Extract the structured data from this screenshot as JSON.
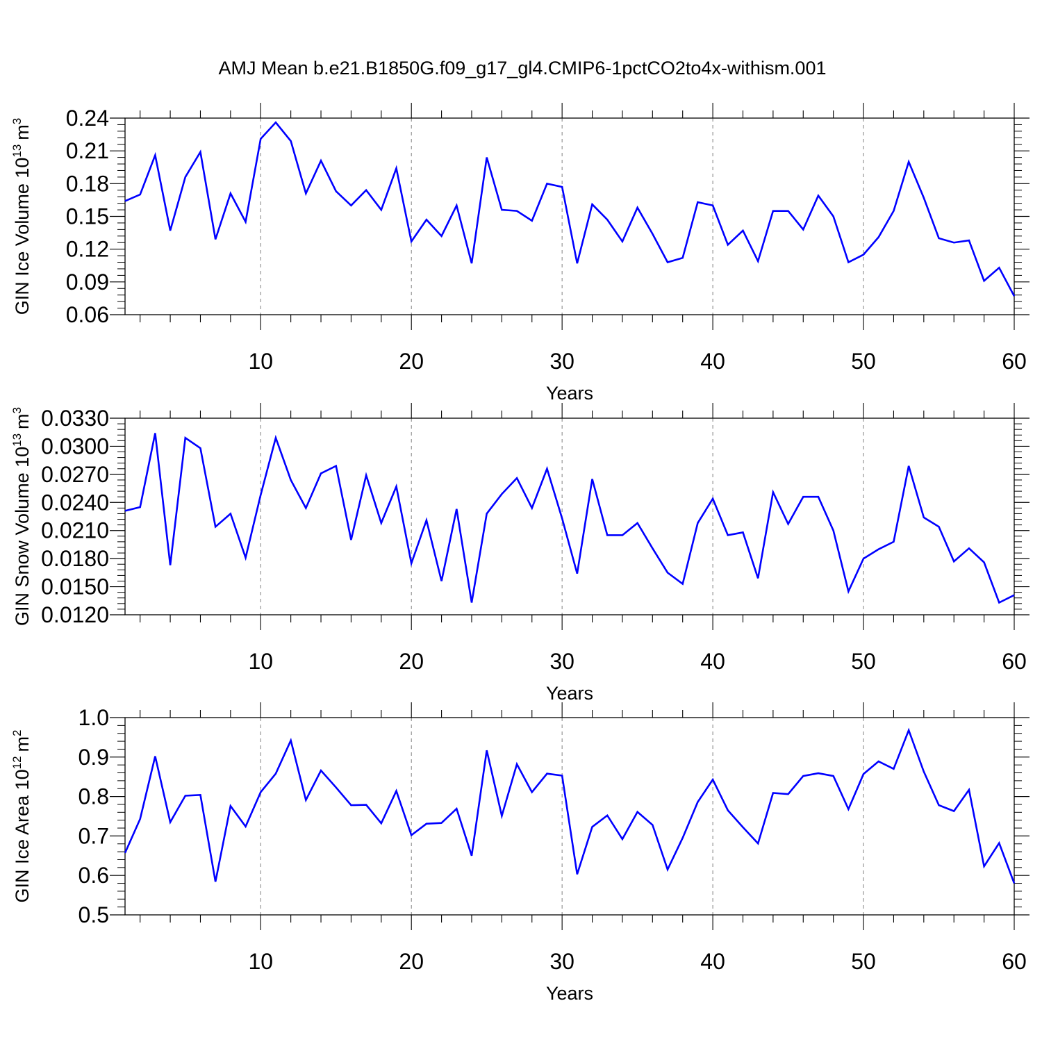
{
  "title": "AMJ Mean b.e21.B1850G.f09_g17_gl4.CMIP6-1pctCO2to4x-withism.001",
  "colors": {
    "line": "#0000ff",
    "axes": "#000000",
    "grid": "#808080"
  },
  "chart_data": [
    {
      "type": "line",
      "xlabel": "Years",
      "ylabel_text": "GIN Ice Volume 10",
      "ylabel_exponent": "13",
      "ylabel_unit": "m",
      "ylabel_unit_exponent": "3",
      "xlim": [
        1,
        60
      ],
      "ylim": [
        0.06,
        0.24
      ],
      "x_ticks": [
        "10",
        "20",
        "30",
        "40",
        "50",
        "60"
      ],
      "y_ticks": [
        "0.06",
        "0.09",
        "0.12",
        "0.15",
        "0.18",
        "0.21",
        "0.24"
      ],
      "x": [
        1,
        2,
        3,
        4,
        5,
        6,
        7,
        8,
        9,
        10,
        11,
        12,
        13,
        14,
        15,
        16,
        17,
        18,
        19,
        20,
        21,
        22,
        23,
        24,
        25,
        26,
        27,
        28,
        29,
        30,
        31,
        32,
        33,
        34,
        35,
        36,
        37,
        38,
        39,
        40,
        41,
        42,
        43,
        44,
        45,
        46,
        47,
        48,
        49,
        50,
        51,
        52,
        53,
        54,
        55,
        56,
        57,
        58,
        59,
        60
      ],
      "series": [
        {
          "values": [
            0.164,
            0.17,
            0.206,
            0.137,
            0.186,
            0.209,
            0.129,
            0.171,
            0.145,
            0.221,
            0.236,
            0.219,
            0.171,
            0.201,
            0.173,
            0.16,
            0.174,
            0.156,
            0.194,
            0.127,
            0.147,
            0.132,
            0.16,
            0.107,
            0.204,
            0.156,
            0.155,
            0.146,
            0.18,
            0.177,
            0.107,
            0.161,
            0.147,
            0.127,
            0.158,
            0.134,
            0.108,
            0.112,
            0.163,
            0.16,
            0.124,
            0.137,
            0.109,
            0.155,
            0.155,
            0.138,
            0.169,
            0.15,
            0.108,
            0.115,
            0.131,
            0.155,
            0.2,
            0.167,
            0.13,
            0.126,
            0.128,
            0.091,
            0.103,
            0.077
          ]
        }
      ],
      "grid": "dashed vertical at major x ticks"
    },
    {
      "type": "line",
      "xlabel": "Years",
      "ylabel_text": "GIN Snow Volume 10",
      "ylabel_exponent": "13",
      "ylabel_unit": "m",
      "ylabel_unit_exponent": "3",
      "xlim": [
        1,
        60
      ],
      "ylim": [
        0.012,
        0.033
      ],
      "x_ticks": [
        "10",
        "20",
        "30",
        "40",
        "50",
        "60"
      ],
      "y_ticks": [
        "0.0120",
        "0.0150",
        "0.0180",
        "0.0210",
        "0.0240",
        "0.0270",
        "0.0300",
        "0.0330"
      ],
      "x": [
        1,
        2,
        3,
        4,
        5,
        6,
        7,
        8,
        9,
        10,
        11,
        12,
        13,
        14,
        15,
        16,
        17,
        18,
        19,
        20,
        21,
        22,
        23,
        24,
        25,
        26,
        27,
        28,
        29,
        30,
        31,
        32,
        33,
        34,
        35,
        36,
        37,
        38,
        39,
        40,
        41,
        42,
        43,
        44,
        45,
        46,
        47,
        48,
        49,
        50,
        51,
        52,
        53,
        54,
        55,
        56,
        57,
        58,
        59,
        60
      ],
      "series": [
        {
          "values": [
            0.0231,
            0.0235,
            0.0314,
            0.0173,
            0.0309,
            0.0298,
            0.0214,
            0.0228,
            0.0181,
            0.0248,
            0.0309,
            0.0264,
            0.0234,
            0.0271,
            0.0279,
            0.02,
            0.0269,
            0.0218,
            0.0257,
            0.0175,
            0.0221,
            0.0156,
            0.0233,
            0.0133,
            0.0228,
            0.0249,
            0.0266,
            0.0234,
            0.0276,
            0.0223,
            0.0164,
            0.0265,
            0.0205,
            0.0205,
            0.0218,
            0.0191,
            0.0165,
            0.0153,
            0.0218,
            0.0244,
            0.0205,
            0.0208,
            0.0159,
            0.0251,
            0.0217,
            0.0246,
            0.0246,
            0.021,
            0.0145,
            0.018,
            0.019,
            0.0198,
            0.0279,
            0.0224,
            0.0214,
            0.0177,
            0.0191,
            0.0176,
            0.0133,
            0.0141
          ]
        }
      ],
      "grid": "dashed vertical at major x ticks"
    },
    {
      "type": "line",
      "xlabel": "Years",
      "ylabel_text": "GIN Ice Area 10",
      "ylabel_exponent": "12",
      "ylabel_unit": "m",
      "ylabel_unit_exponent": "2",
      "xlim": [
        1,
        60
      ],
      "ylim": [
        0.5,
        1.0
      ],
      "x_ticks": [
        "10",
        "20",
        "30",
        "40",
        "50",
        "60"
      ],
      "y_ticks": [
        "0.5",
        "0.6",
        "0.7",
        "0.8",
        "0.9",
        "1.0"
      ],
      "x": [
        1,
        2,
        3,
        4,
        5,
        6,
        7,
        8,
        9,
        10,
        11,
        12,
        13,
        14,
        15,
        16,
        17,
        18,
        19,
        20,
        21,
        22,
        23,
        24,
        25,
        26,
        27,
        28,
        29,
        30,
        31,
        32,
        33,
        34,
        35,
        36,
        37,
        38,
        39,
        40,
        41,
        42,
        43,
        44,
        45,
        46,
        47,
        48,
        49,
        50,
        51,
        52,
        53,
        54,
        55,
        56,
        57,
        58,
        59,
        60
      ],
      "series": [
        {
          "values": [
            0.657,
            0.743,
            0.902,
            0.735,
            0.802,
            0.804,
            0.584,
            0.776,
            0.724,
            0.811,
            0.858,
            0.942,
            0.791,
            0.866,
            0.823,
            0.778,
            0.779,
            0.732,
            0.814,
            0.702,
            0.731,
            0.733,
            0.769,
            0.65,
            0.917,
            0.751,
            0.882,
            0.811,
            0.858,
            0.853,
            0.603,
            0.723,
            0.752,
            0.692,
            0.761,
            0.728,
            0.615,
            0.695,
            0.786,
            0.843,
            0.765,
            0.722,
            0.681,
            0.809,
            0.806,
            0.852,
            0.859,
            0.852,
            0.768,
            0.857,
            0.889,
            0.87,
            0.968,
            0.863,
            0.778,
            0.763,
            0.817,
            0.623,
            0.682,
            0.58
          ]
        }
      ],
      "grid": "dashed vertical at major x ticks"
    }
  ]
}
